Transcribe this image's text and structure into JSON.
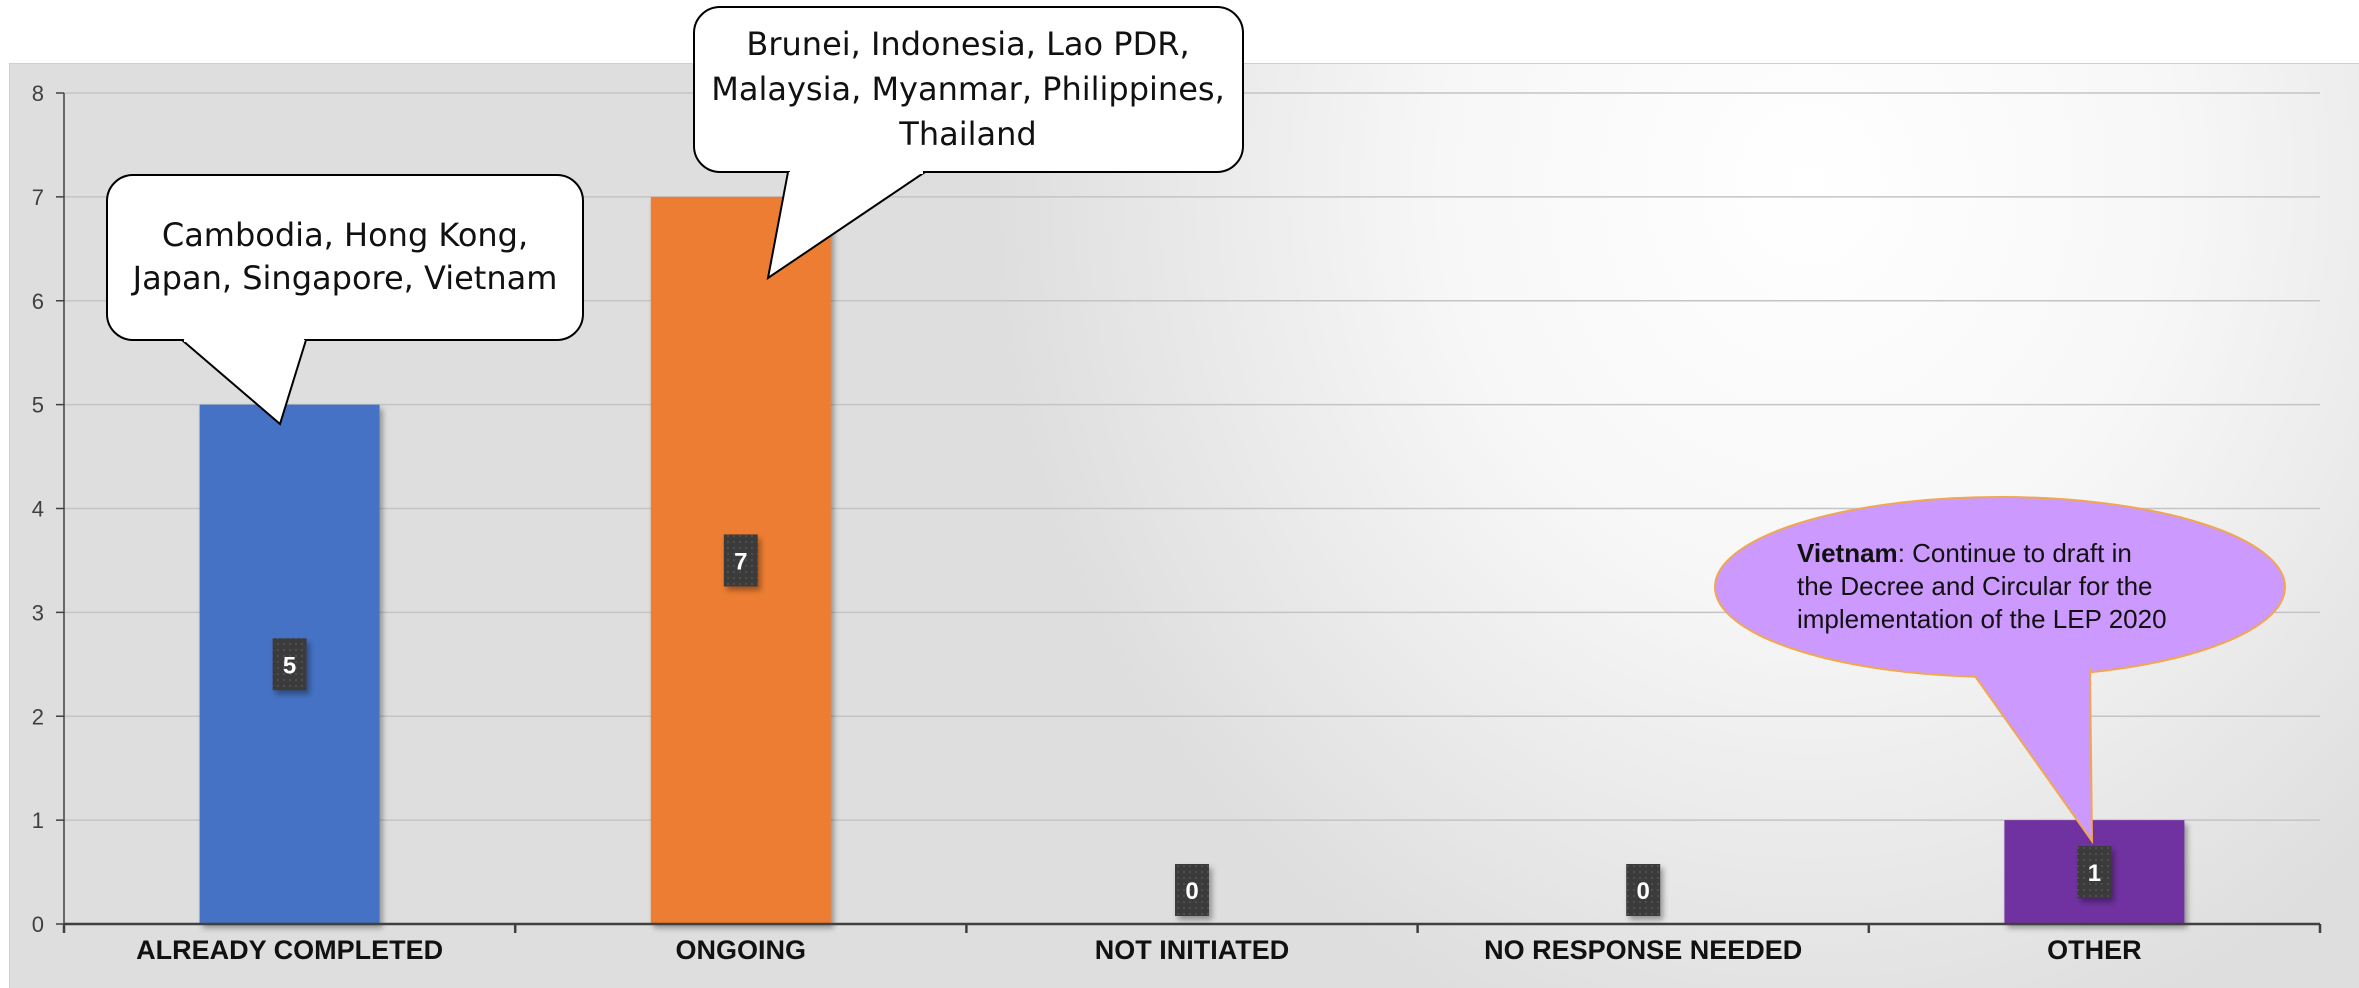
{
  "chart_data": {
    "type": "bar",
    "categories": [
      "ALREADY COMPLETED",
      "ONGOING",
      "NOT INITIATED",
      "NO RESPONSE NEEDED",
      "OTHER"
    ],
    "values": [
      5,
      7,
      0,
      0,
      1
    ],
    "colors": [
      "#4472C4",
      "#ED7D31",
      "#A5A5A5",
      "#A5A5A5",
      "#7030A0"
    ],
    "data_labels": [
      "5",
      "7",
      "0",
      "0",
      "1"
    ],
    "ylim": [
      0,
      8
    ],
    "yticks": [
      "0",
      "1",
      "2",
      "3",
      "4",
      "5",
      "6",
      "7",
      "8"
    ],
    "grid": true,
    "legend": "none",
    "title": "",
    "xlabel": "",
    "ylabel": ""
  },
  "callouts": [
    {
      "target": "ALREADY COMPLETED",
      "lines": [
        "Cambodia, Hong Kong,",
        "Japan, Singapore, Vietnam"
      ],
      "fill": "#FFFFFF"
    },
    {
      "target": "ONGOING",
      "lines": [
        "Brunei, Indonesia, Lao PDR,",
        "Malaysia, Myanmar, Philippines,",
        "Thailand"
      ],
      "fill": "#FFFFFF"
    },
    {
      "target": "OTHER",
      "bold": "Vietnam",
      "lines": [
        ": Continue to draft in",
        "the Decree and Circular for the",
        "implementation of the LEP 2020"
      ],
      "fill": "#CC99FF"
    }
  ]
}
